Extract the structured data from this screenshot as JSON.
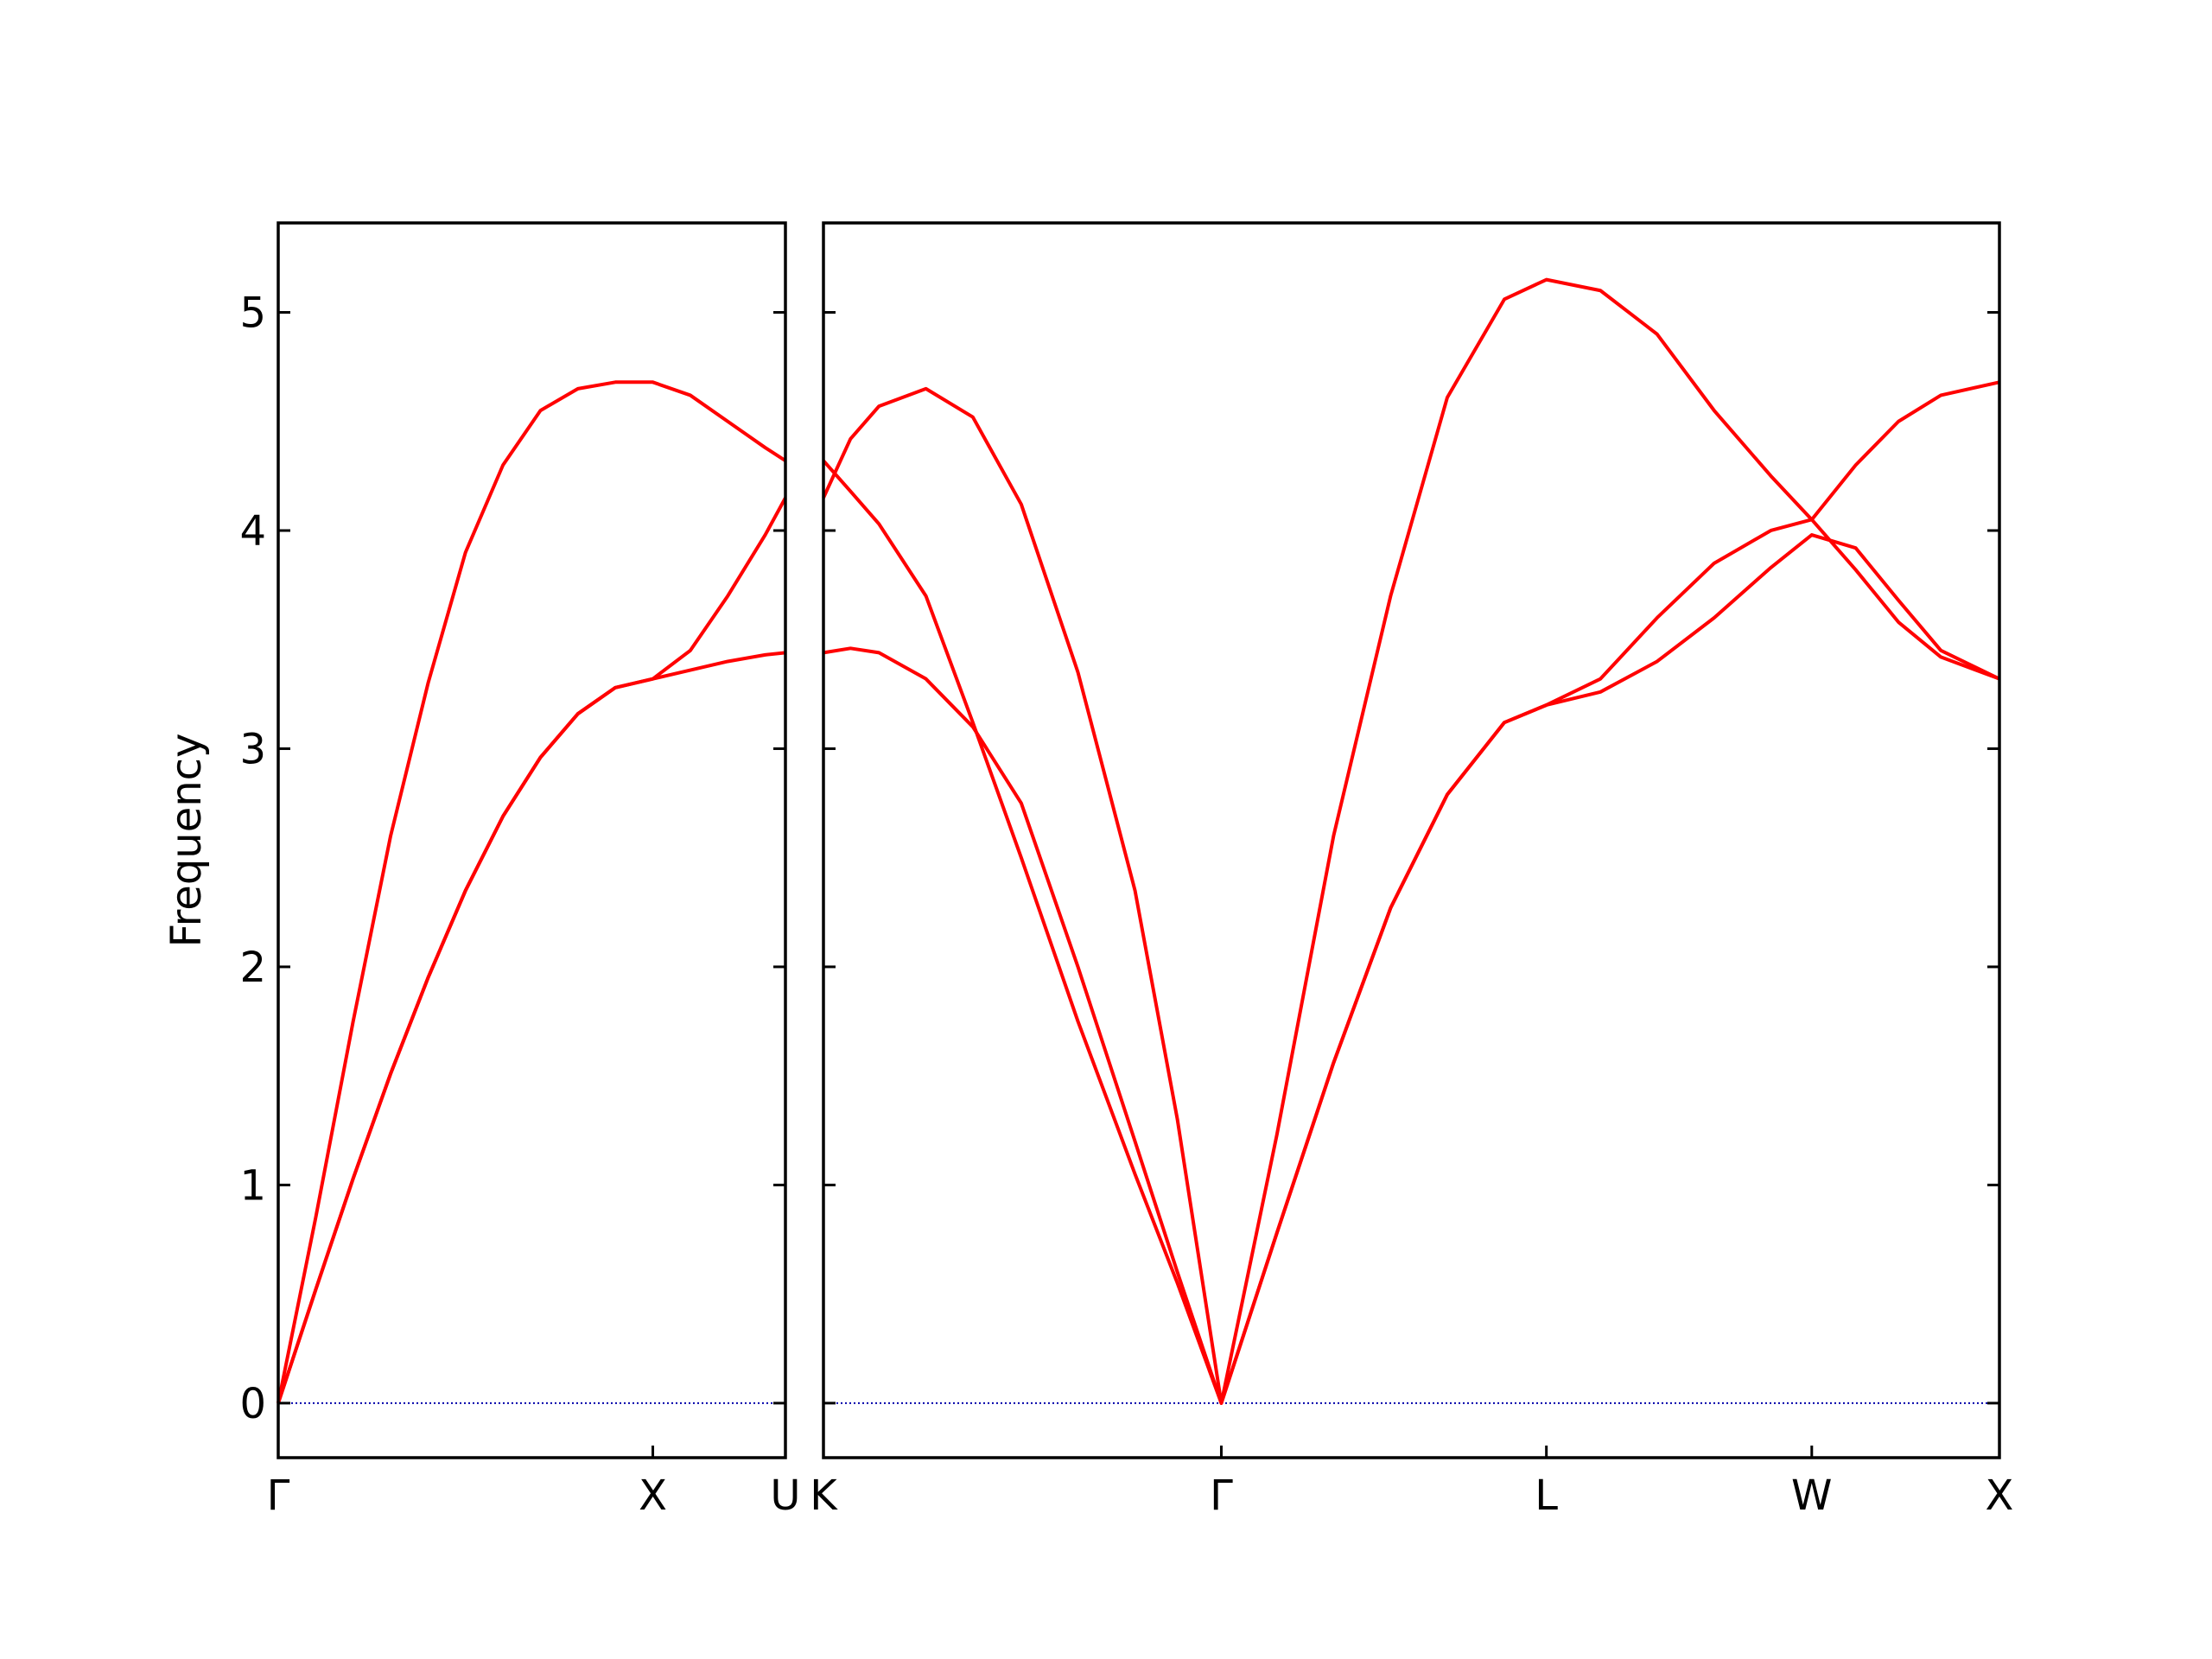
{
  "chart_data": [
    {
      "type": "line",
      "ylabel": "Frequency",
      "x": [
        0,
        0.1,
        0.2,
        0.3,
        0.4,
        0.5,
        0.6,
        0.7,
        0.8,
        0.9,
        1.0,
        1.1,
        1.2,
        1.3,
        1.354
      ],
      "series": [
        {
          "color": "#ff0000",
          "values": [
            0,
            0.85,
            1.75,
            2.6,
            3.3,
            3.9,
            4.3,
            4.55,
            4.65,
            4.68,
            4.68,
            4.62,
            4.5,
            4.38,
            4.32
          ]
        },
        {
          "color": "#ff0000",
          "values": [
            0,
            0.52,
            1.03,
            1.51,
            1.95,
            2.35,
            2.69,
            2.96,
            3.16,
            3.28,
            3.32,
            3.45,
            3.7,
            3.98,
            4.15
          ]
        },
        {
          "color": "#ff0000",
          "values": [
            0,
            0.52,
            1.03,
            1.51,
            1.95,
            2.35,
            2.69,
            2.96,
            3.16,
            3.28,
            3.32,
            3.36,
            3.4,
            3.43,
            3.44
          ]
        }
      ],
      "xlim": [
        0,
        1.354
      ],
      "xticks": [
        {
          "value": 0,
          "label": "Γ"
        },
        {
          "value": 1.0,
          "label": "X"
        },
        {
          "value": 1.354,
          "label": "U"
        }
      ],
      "ylim": [
        -0.25,
        5.41
      ],
      "yticks": [
        0,
        1,
        2,
        3,
        4,
        5
      ],
      "ytick_labels": true,
      "hlines": [
        {
          "value": 0,
          "color": "#0000aa",
          "style": "dotted"
        }
      ]
    },
    {
      "type": "line",
      "x": [
        1.354,
        1.426,
        1.502,
        1.627,
        1.752,
        1.881,
        2.032,
        2.184,
        2.297,
        2.414,
        2.562,
        2.713,
        2.865,
        3.016,
        3.168,
        3.28,
        3.424,
        3.575,
        3.727,
        3.878,
        3.987,
        4.104,
        4.218,
        4.331,
        4.487
      ],
      "series": [
        {
          "color": "#ff0000",
          "values": [
            4.15,
            4.42,
            4.57,
            4.65,
            4.52,
            4.12,
            3.35,
            2.35,
            1.3,
            0,
            1.23,
            2.6,
            3.7,
            4.61,
            5.06,
            5.15,
            5.1,
            4.9,
            4.55,
            4.25,
            4.05,
            3.82,
            3.58,
            3.42,
            3.32
          ]
        },
        {
          "color": "#ff0000",
          "values": [
            4.32,
            4.18,
            4.03,
            3.7,
            3.12,
            2.5,
            1.75,
            1.05,
            0.55,
            0,
            0.78,
            1.56,
            2.27,
            2.79,
            3.12,
            3.2,
            3.32,
            3.6,
            3.85,
            4.0,
            4.05,
            4.3,
            4.5,
            4.62,
            4.68
          ]
        },
        {
          "color": "#ff0000",
          "values": [
            3.44,
            3.46,
            3.44,
            3.32,
            3.1,
            2.75,
            2.0,
            1.2,
            0.6,
            0,
            0.78,
            1.56,
            2.27,
            2.79,
            3.12,
            3.2,
            3.26,
            3.4,
            3.6,
            3.83,
            3.98,
            3.92,
            3.68,
            3.45,
            3.32
          ]
        }
      ],
      "xlim": [
        1.354,
        4.487
      ],
      "xticks": [
        {
          "value": 1.354,
          "label": "K"
        },
        {
          "value": 2.414,
          "label": "Γ"
        },
        {
          "value": 3.28,
          "label": "L"
        },
        {
          "value": 3.987,
          "label": "W"
        },
        {
          "value": 4.487,
          "label": "X"
        }
      ],
      "ylim": [
        -0.25,
        5.41
      ],
      "yticks": [
        0,
        1,
        2,
        3,
        4,
        5
      ],
      "ytick_labels": false,
      "hlines": [
        {
          "value": 0,
          "color": "#0000aa",
          "style": "dotted"
        }
      ]
    }
  ]
}
